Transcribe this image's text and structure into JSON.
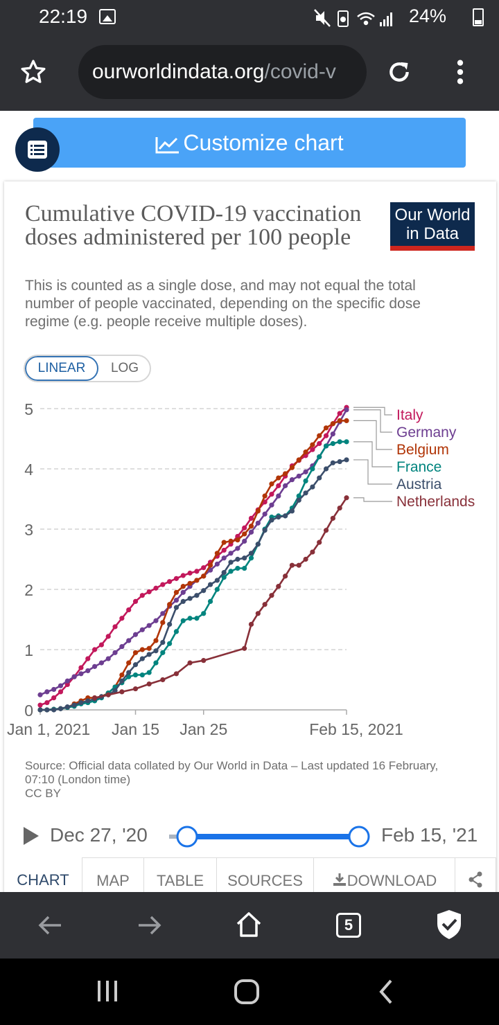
{
  "status_bar": {
    "time": "22:19",
    "battery": "24%",
    "icons": [
      "image-icon",
      "mute-icon",
      "battery-saver-icon",
      "wifi-icon",
      "signal-icon",
      "battery-icon"
    ]
  },
  "browser": {
    "url_main": "ourworldindata.org",
    "url_rest": "/covid-v",
    "icons": [
      "star-icon",
      "reload-icon",
      "more-icon"
    ]
  },
  "customize_label": "Customize chart",
  "card": {
    "title": "Cumulative COVID-19 vaccination doses administered per 100 people",
    "subtitle": "This is counted as a single dose, and may not equal the total number of people vaccinated, depending on the specific dose regime (e.g. people receive multiple doses).",
    "logo_line1": "Our World",
    "logo_line2": "in Data",
    "toggle_linear": "LINEAR",
    "toggle_log": "LOG",
    "source": "Source: Official data collated by Our World in Data – Last updated 16 February, 07:10 (London time)",
    "license": "CC BY"
  },
  "timeline": {
    "start": "Dec 27, '20",
    "end": "Feb 15, '21",
    "range_fraction": [
      0,
      1
    ]
  },
  "tabs": [
    "CHART",
    "MAP",
    "TABLE",
    "SOURCES",
    "DOWNLOAD"
  ],
  "active_tab": "CHART",
  "nav": {
    "tab_count": "5"
  },
  "chart_data": {
    "type": "line",
    "x_type": "date",
    "x_range": [
      "2021-01-01",
      "2021-02-15"
    ],
    "x_ticks": [
      {
        "date": "2021-01-01",
        "label": "Jan 1, 2021"
      },
      {
        "date": "2021-01-15",
        "label": "Jan 15"
      },
      {
        "date": "2021-01-25",
        "label": "Jan 25"
      },
      {
        "date": "2021-02-15",
        "label": "Feb 15, 2021"
      }
    ],
    "ylim": [
      0,
      5
    ],
    "y_ticks": [
      "0",
      "1",
      "2",
      "3",
      "4",
      "5"
    ],
    "grid": "horizontal dashed",
    "legend_placement": "right, end of lines",
    "series": [
      {
        "name": "Italy",
        "color": "#c2185b",
        "points": [
          [
            "2021-01-01",
            0.08
          ],
          [
            "2021-01-02",
            0.12
          ],
          [
            "2021-01-03",
            0.2
          ],
          [
            "2021-01-04",
            0.3
          ],
          [
            "2021-01-05",
            0.42
          ],
          [
            "2021-01-06",
            0.55
          ],
          [
            "2021-01-07",
            0.7
          ],
          [
            "2021-01-08",
            0.85
          ],
          [
            "2021-01-09",
            1.0
          ],
          [
            "2021-01-10",
            1.08
          ],
          [
            "2021-01-11",
            1.22
          ],
          [
            "2021-01-12",
            1.38
          ],
          [
            "2021-01-13",
            1.52
          ],
          [
            "2021-01-14",
            1.66
          ],
          [
            "2021-01-15",
            1.8
          ],
          [
            "2021-01-16",
            1.9
          ],
          [
            "2021-01-17",
            1.96
          ],
          [
            "2021-01-18",
            2.02
          ],
          [
            "2021-01-19",
            2.08
          ],
          [
            "2021-01-20",
            2.13
          ],
          [
            "2021-01-21",
            2.18
          ],
          [
            "2021-01-22",
            2.23
          ],
          [
            "2021-01-23",
            2.27
          ],
          [
            "2021-01-24",
            2.3
          ],
          [
            "2021-01-25",
            2.36
          ],
          [
            "2021-01-26",
            2.45
          ],
          [
            "2021-01-27",
            2.55
          ],
          [
            "2021-01-28",
            2.65
          ],
          [
            "2021-01-29",
            2.75
          ],
          [
            "2021-01-30",
            2.88
          ],
          [
            "2021-01-31",
            3.02
          ],
          [
            "2021-02-01",
            3.18
          ],
          [
            "2021-02-02",
            3.32
          ],
          [
            "2021-02-03",
            3.45
          ],
          [
            "2021-02-04",
            3.58
          ],
          [
            "2021-02-05",
            3.72
          ],
          [
            "2021-02-06",
            3.88
          ],
          [
            "2021-02-07",
            4.05
          ],
          [
            "2021-02-08",
            4.14
          ],
          [
            "2021-02-09",
            4.22
          ],
          [
            "2021-02-10",
            4.32
          ],
          [
            "2021-02-11",
            4.42
          ],
          [
            "2021-02-12",
            4.55
          ],
          [
            "2021-02-13",
            4.75
          ],
          [
            "2021-02-14",
            4.92
          ],
          [
            "2021-02-15",
            5.02
          ]
        ]
      },
      {
        "name": "Germany",
        "color": "#6d3e91",
        "points": [
          [
            "2021-01-01",
            0.25
          ],
          [
            "2021-01-02",
            0.3
          ],
          [
            "2021-01-03",
            0.34
          ],
          [
            "2021-01-04",
            0.4
          ],
          [
            "2021-01-05",
            0.48
          ],
          [
            "2021-01-06",
            0.55
          ],
          [
            "2021-01-07",
            0.6
          ],
          [
            "2021-01-08",
            0.65
          ],
          [
            "2021-01-09",
            0.72
          ],
          [
            "2021-01-10",
            0.78
          ],
          [
            "2021-01-11",
            0.85
          ],
          [
            "2021-01-12",
            0.95
          ],
          [
            "2021-01-13",
            1.05
          ],
          [
            "2021-01-14",
            1.15
          ],
          [
            "2021-01-15",
            1.25
          ],
          [
            "2021-01-16",
            1.33
          ],
          [
            "2021-01-17",
            1.4
          ],
          [
            "2021-01-18",
            1.48
          ],
          [
            "2021-01-19",
            1.6
          ],
          [
            "2021-01-20",
            1.72
          ],
          [
            "2021-01-21",
            1.82
          ],
          [
            "2021-01-22",
            1.95
          ],
          [
            "2021-01-23",
            2.05
          ],
          [
            "2021-01-24",
            2.15
          ],
          [
            "2021-01-25",
            2.22
          ],
          [
            "2021-01-26",
            2.32
          ],
          [
            "2021-01-27",
            2.42
          ],
          [
            "2021-01-28",
            2.52
          ],
          [
            "2021-01-29",
            2.6
          ],
          [
            "2021-01-30",
            2.68
          ],
          [
            "2021-01-31",
            2.8
          ],
          [
            "2021-02-01",
            2.95
          ],
          [
            "2021-02-02",
            3.1
          ],
          [
            "2021-02-03",
            3.25
          ],
          [
            "2021-02-04",
            3.4
          ],
          [
            "2021-02-05",
            3.55
          ],
          [
            "2021-02-06",
            3.72
          ],
          [
            "2021-02-07",
            3.82
          ],
          [
            "2021-02-08",
            3.88
          ],
          [
            "2021-02-09",
            3.95
          ],
          [
            "2021-02-10",
            4.05
          ],
          [
            "2021-02-11",
            4.2
          ],
          [
            "2021-02-12",
            4.38
          ],
          [
            "2021-02-13",
            4.58
          ],
          [
            "2021-02-14",
            4.78
          ],
          [
            "2021-02-15",
            4.98
          ]
        ]
      },
      {
        "name": "Belgium",
        "color": "#b13507",
        "points": [
          [
            "2021-01-01",
            0.0
          ],
          [
            "2021-01-02",
            0.0
          ],
          [
            "2021-01-03",
            0.01
          ],
          [
            "2021-01-04",
            0.02
          ],
          [
            "2021-01-05",
            0.04
          ],
          [
            "2021-01-06",
            0.1
          ],
          [
            "2021-01-07",
            0.15
          ],
          [
            "2021-01-08",
            0.2
          ],
          [
            "2021-01-09",
            0.2
          ],
          [
            "2021-01-10",
            0.22
          ],
          [
            "2021-01-11",
            0.28
          ],
          [
            "2021-01-12",
            0.38
          ],
          [
            "2021-01-13",
            0.58
          ],
          [
            "2021-01-14",
            0.78
          ],
          [
            "2021-01-15",
            0.95
          ],
          [
            "2021-01-16",
            1.0
          ],
          [
            "2021-01-17",
            1.02
          ],
          [
            "2021-01-18",
            1.15
          ],
          [
            "2021-01-19",
            1.45
          ],
          [
            "2021-01-20",
            1.75
          ],
          [
            "2021-01-21",
            1.95
          ],
          [
            "2021-01-22",
            2.05
          ],
          [
            "2021-01-23",
            2.1
          ],
          [
            "2021-01-24",
            2.15
          ],
          [
            "2021-01-25",
            2.22
          ],
          [
            "2021-01-26",
            2.4
          ],
          [
            "2021-01-27",
            2.6
          ],
          [
            "2021-01-28",
            2.78
          ],
          [
            "2021-01-29",
            2.8
          ],
          [
            "2021-01-30",
            2.82
          ],
          [
            "2021-01-31",
            2.92
          ],
          [
            "2021-02-01",
            3.05
          ],
          [
            "2021-02-02",
            3.3
          ],
          [
            "2021-02-03",
            3.55
          ],
          [
            "2021-02-04",
            3.75
          ],
          [
            "2021-02-05",
            3.85
          ],
          [
            "2021-02-06",
            3.92
          ],
          [
            "2021-02-07",
            4.02
          ],
          [
            "2021-02-08",
            4.15
          ],
          [
            "2021-02-09",
            4.28
          ],
          [
            "2021-02-10",
            4.4
          ],
          [
            "2021-02-11",
            4.55
          ],
          [
            "2021-02-12",
            4.68
          ],
          [
            "2021-02-13",
            4.75
          ],
          [
            "2021-02-14",
            4.8
          ],
          [
            "2021-02-15",
            4.8
          ]
        ]
      },
      {
        "name": "France",
        "color": "#00847e",
        "points": [
          [
            "2021-01-01",
            0.0
          ],
          [
            "2021-01-02",
            0.0
          ],
          [
            "2021-01-03",
            0.01
          ],
          [
            "2021-01-04",
            0.02
          ],
          [
            "2021-01-05",
            0.04
          ],
          [
            "2021-01-06",
            0.06
          ],
          [
            "2021-01-07",
            0.1
          ],
          [
            "2021-01-08",
            0.12
          ],
          [
            "2021-01-09",
            0.15
          ],
          [
            "2021-01-10",
            0.2
          ],
          [
            "2021-01-11",
            0.28
          ],
          [
            "2021-01-12",
            0.38
          ],
          [
            "2021-01-13",
            0.45
          ],
          [
            "2021-01-14",
            0.55
          ],
          [
            "2021-01-15",
            0.58
          ],
          [
            "2021-01-16",
            0.58
          ],
          [
            "2021-01-17",
            0.62
          ],
          [
            "2021-01-18",
            0.78
          ],
          [
            "2021-01-19",
            0.95
          ],
          [
            "2021-01-20",
            1.1
          ],
          [
            "2021-01-21",
            1.3
          ],
          [
            "2021-01-22",
            1.48
          ],
          [
            "2021-01-23",
            1.52
          ],
          [
            "2021-01-24",
            1.52
          ],
          [
            "2021-01-25",
            1.6
          ],
          [
            "2021-01-26",
            1.8
          ],
          [
            "2021-01-27",
            2.0
          ],
          [
            "2021-01-28",
            2.2
          ],
          [
            "2021-01-29",
            2.3
          ],
          [
            "2021-01-30",
            2.35
          ],
          [
            "2021-01-31",
            2.35
          ],
          [
            "2021-02-01",
            2.52
          ],
          [
            "2021-02-02",
            2.75
          ],
          [
            "2021-02-03",
            3.0
          ],
          [
            "2021-02-04",
            3.2
          ],
          [
            "2021-02-05",
            3.22
          ],
          [
            "2021-02-06",
            3.22
          ],
          [
            "2021-02-07",
            3.35
          ],
          [
            "2021-02-08",
            3.55
          ],
          [
            "2021-02-09",
            3.8
          ],
          [
            "2021-02-10",
            4.0
          ],
          [
            "2021-02-11",
            4.2
          ],
          [
            "2021-02-12",
            4.38
          ],
          [
            "2021-02-13",
            4.42
          ],
          [
            "2021-02-14",
            4.45
          ],
          [
            "2021-02-15",
            4.45
          ]
        ]
      },
      {
        "name": "Austria",
        "color": "#3b4e6b",
        "points": [
          [
            "2021-01-01",
            0.0
          ],
          [
            "2021-01-02",
            0.0
          ],
          [
            "2021-01-03",
            0.0
          ],
          [
            "2021-01-04",
            0.02
          ],
          [
            "2021-01-05",
            0.05
          ],
          [
            "2021-01-06",
            0.08
          ],
          [
            "2021-01-07",
            0.12
          ],
          [
            "2021-01-08",
            0.15
          ],
          [
            "2021-01-09",
            0.18
          ],
          [
            "2021-01-10",
            0.22
          ],
          [
            "2021-01-11",
            0.25
          ],
          [
            "2021-01-12",
            0.32
          ],
          [
            "2021-01-13",
            0.48
          ],
          [
            "2021-01-14",
            0.62
          ],
          [
            "2021-01-15",
            0.75
          ],
          [
            "2021-01-16",
            0.85
          ],
          [
            "2021-01-17",
            0.92
          ],
          [
            "2021-01-18",
            0.98
          ],
          [
            "2021-01-19",
            1.12
          ],
          [
            "2021-01-20",
            1.42
          ],
          [
            "2021-01-21",
            1.7
          ],
          [
            "2021-01-22",
            1.8
          ],
          [
            "2021-01-23",
            1.85
          ],
          [
            "2021-01-24",
            1.9
          ],
          [
            "2021-01-25",
            1.98
          ],
          [
            "2021-01-26",
            2.08
          ],
          [
            "2021-01-27",
            2.15
          ],
          [
            "2021-01-28",
            2.28
          ],
          [
            "2021-01-29",
            2.45
          ],
          [
            "2021-01-30",
            2.5
          ],
          [
            "2021-01-31",
            2.52
          ],
          [
            "2021-02-01",
            2.6
          ],
          [
            "2021-02-02",
            2.75
          ],
          [
            "2021-02-03",
            2.98
          ],
          [
            "2021-02-04",
            3.15
          ],
          [
            "2021-02-05",
            3.2
          ],
          [
            "2021-02-06",
            3.22
          ],
          [
            "2021-02-07",
            3.3
          ],
          [
            "2021-02-08",
            3.48
          ],
          [
            "2021-02-09",
            3.6
          ],
          [
            "2021-02-10",
            3.7
          ],
          [
            "2021-02-11",
            3.85
          ],
          [
            "2021-02-12",
            4.0
          ],
          [
            "2021-02-13",
            4.1
          ],
          [
            "2021-02-14",
            4.12
          ],
          [
            "2021-02-15",
            4.15
          ]
        ]
      },
      {
        "name": "Netherlands",
        "color": "#883039",
        "points": [
          [
            "2021-01-09",
            0.2
          ],
          [
            "2021-01-11",
            0.25
          ],
          [
            "2021-01-13",
            0.3
          ],
          [
            "2021-01-15",
            0.35
          ],
          [
            "2021-01-17",
            0.43
          ],
          [
            "2021-01-19",
            0.5
          ],
          [
            "2021-01-21",
            0.6
          ],
          [
            "2021-01-23",
            0.78
          ],
          [
            "2021-01-25",
            0.82
          ],
          [
            "2021-01-31",
            1.02
          ],
          [
            "2021-02-01",
            1.42
          ],
          [
            "2021-02-02",
            1.6
          ],
          [
            "2021-02-03",
            1.75
          ],
          [
            "2021-02-04",
            1.9
          ],
          [
            "2021-02-05",
            2.05
          ],
          [
            "2021-02-06",
            2.22
          ],
          [
            "2021-02-07",
            2.4
          ],
          [
            "2021-02-08",
            2.4
          ],
          [
            "2021-02-09",
            2.5
          ],
          [
            "2021-02-10",
            2.62
          ],
          [
            "2021-02-11",
            2.78
          ],
          [
            "2021-02-12",
            2.98
          ],
          [
            "2021-02-13",
            3.18
          ],
          [
            "2021-02-14",
            3.35
          ],
          [
            "2021-02-15",
            3.52
          ]
        ]
      }
    ]
  }
}
